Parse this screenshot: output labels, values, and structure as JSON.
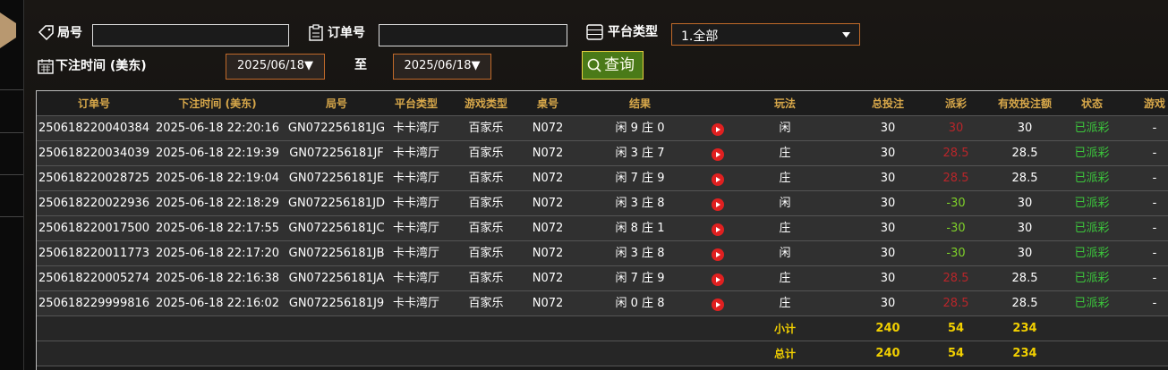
{
  "filters": {
    "round_label": "局号",
    "order_label": "订单号",
    "platform_label": "平台类型",
    "platform_value": "1.全部",
    "time_label": "下注时间 (美东)",
    "date_from": "2025/06/18▼",
    "to_label": "至",
    "date_to": "2025/06/18▼",
    "query_button": "查询"
  },
  "table": {
    "header": [
      "订单号",
      "下注时间 (美东)",
      "局号",
      "平台类型",
      "游戏类型",
      "桌号",
      "结果",
      "玩法",
      "总投注",
      "派彩",
      "有效投注额",
      "状态",
      "游戏"
    ],
    "rows": [
      [
        "250618220040384",
        "2025-06-18 22:20:16",
        "GN072256181JG",
        "卡卡湾厅",
        "百家乐",
        "N072",
        "闲 9 庄 0",
        "闲",
        "30",
        "30",
        "30",
        "已派彩",
        "-"
      ],
      [
        "250618220034039",
        "2025-06-18 22:19:39",
        "GN072256181JF",
        "卡卡湾厅",
        "百家乐",
        "N072",
        "闲 3 庄 7",
        "庄",
        "30",
        "28.5",
        "28.5",
        "已派彩",
        "-"
      ],
      [
        "250618220028725",
        "2025-06-18 22:19:04",
        "GN072256181JE",
        "卡卡湾厅",
        "百家乐",
        "N072",
        "闲 7 庄 9",
        "庄",
        "30",
        "28.5",
        "28.5",
        "已派彩",
        "-"
      ],
      [
        "250618220022936",
        "2025-06-18 22:18:29",
        "GN072256181JD",
        "卡卡湾厅",
        "百家乐",
        "N072",
        "闲 3 庄 8",
        "闲",
        "30",
        "-30",
        "30",
        "已派彩",
        "-"
      ],
      [
        "250618220017500",
        "2025-06-18 22:17:55",
        "GN072256181JC",
        "卡卡湾厅",
        "百家乐",
        "N072",
        "闲 8 庄 1",
        "庄",
        "30",
        "-30",
        "30",
        "已派彩",
        "-"
      ],
      [
        "250618220011773",
        "2025-06-18 22:17:20",
        "GN072256181JB",
        "卡卡湾厅",
        "百家乐",
        "N072",
        "闲 3 庄 8",
        "闲",
        "30",
        "-30",
        "30",
        "已派彩",
        "-"
      ],
      [
        "250618220005274",
        "2025-06-18 22:16:38",
        "GN072256181JA",
        "卡卡湾厅",
        "百家乐",
        "N072",
        "闲 7 庄 9",
        "庄",
        "30",
        "28.5",
        "28.5",
        "已派彩",
        "-"
      ],
      [
        "250618229999816",
        "2025-06-18 22:16:02",
        "GN072256181J9",
        "卡卡湾厅",
        "百家乐",
        "N072",
        "闲 0 庄 8",
        "庄",
        "30",
        "28.5",
        "28.5",
        "已派彩",
        "-"
      ]
    ],
    "subtotal": {
      "label": "小计",
      "bet": "240",
      "payout": "54",
      "valid": "234"
    },
    "total": {
      "label": "总计",
      "bet": "240",
      "payout": "54",
      "valid": "234"
    }
  }
}
